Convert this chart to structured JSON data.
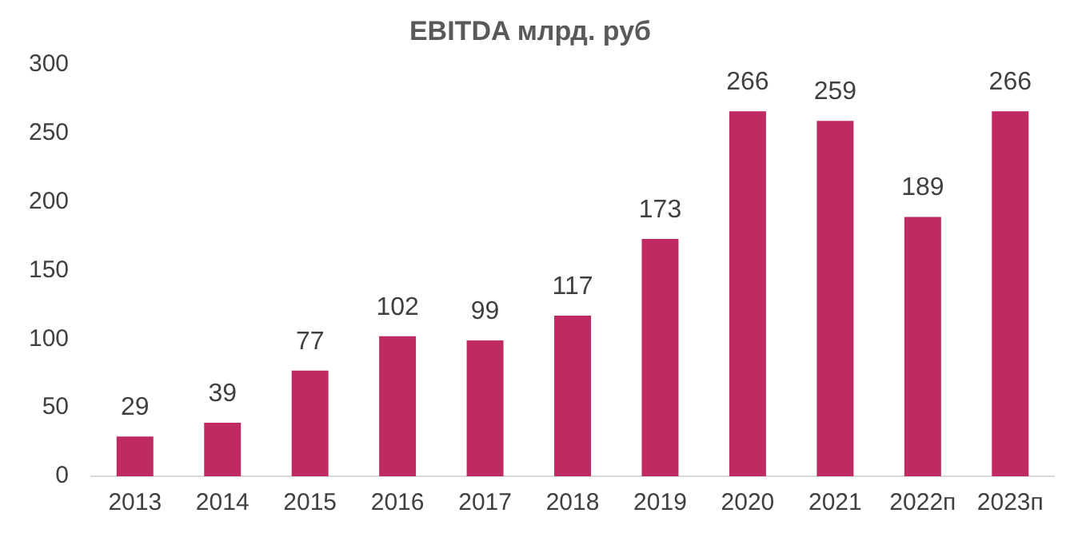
{
  "chart_data": {
    "type": "bar",
    "title": "EBITDA млрд. руб",
    "categories": [
      "2013",
      "2014",
      "2015",
      "2016",
      "2017",
      "2018",
      "2019",
      "2020",
      "2021",
      "2022п",
      "2023п"
    ],
    "values": [
      29,
      39,
      77,
      102,
      99,
      117,
      173,
      266,
      259,
      189,
      266
    ],
    "color": "#c02a63",
    "ylim": [
      0,
      300
    ],
    "yticks": [
      0,
      50,
      100,
      150,
      200,
      250,
      300
    ],
    "grid": false,
    "data_labels": true
  }
}
